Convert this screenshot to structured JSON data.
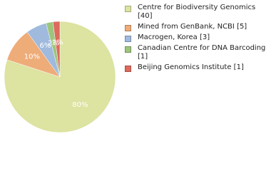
{
  "chart_data": {
    "type": "pie",
    "series": [
      {
        "name": "Centre for Biodiversity Genomics [40]",
        "color": "#dde3a0"
      },
      {
        "name": "Mined from GenBank, NCBI [5]",
        "color": "#eeac79"
      },
      {
        "name": "Macrogen, Korea [3]",
        "color": "#9fbadd"
      },
      {
        "name": "Canadian Centre for DNA Barcoding [1]",
        "color": "#9dc57b"
      },
      {
        "name": "Beijing Genomics Institute [1]",
        "color": "#de6a5e"
      }
    ],
    "values": [
      80,
      10,
      6,
      2,
      2
    ],
    "value_labels": [
      "80%",
      "10%",
      "6%",
      "2%",
      "2%"
    ]
  }
}
